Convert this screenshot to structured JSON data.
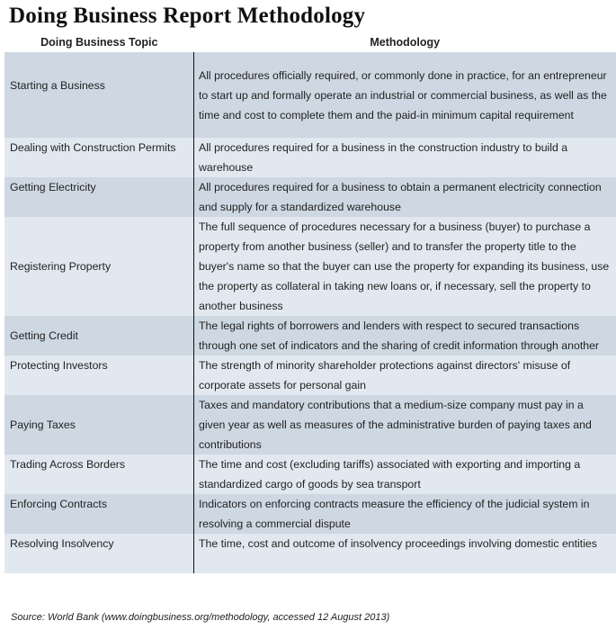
{
  "title": "Doing Business Report Methodology",
  "columns": [
    "Doing Business Topic",
    "Methodology"
  ],
  "rows": [
    {
      "topic": "Starting a Business",
      "methodology": "All procedures officially required, or commonly done in practice, for an entrepreneur to start up and formally operate an industrial or commercial business, as well as the time and cost to complete them and the paid-in minimum capital requirement"
    },
    {
      "topic": "Dealing with Construction Permits",
      "methodology": "All procedures required for a business in the construction industry to build a warehouse"
    },
    {
      "topic": "Getting Electricity",
      "methodology": "All procedures required for a business to obtain a permanent electricity connection and supply for a standardized warehouse"
    },
    {
      "topic": "Registering Property",
      "methodology": "The full sequence of procedures necessary for a business (buyer) to purchase a property from another business (seller) and to transfer the property title to the buyer's name so that the buyer can use the property for expanding its business, use the property as collateral in taking new loans or, if necessary, sell the property to another business"
    },
    {
      "topic": "Getting Credit",
      "methodology": "The legal rights of borrowers and lenders with respect to secured transactions through one set of indicators and the sharing of credit information through another"
    },
    {
      "topic": "Protecting Investors",
      "methodology": "The strength of minority shareholder protections against directors' misuse of corporate assets for personal gain"
    },
    {
      "topic": "Paying Taxes",
      "methodology": "Taxes and mandatory contributions that a medium-size company must pay in a given year as well as measures of the administrative burden of paying taxes and contributions"
    },
    {
      "topic": "Trading Across Borders",
      "methodology": "The time and cost (excluding tariffs) associated with exporting and importing a standardized cargo of goods by sea transport"
    },
    {
      "topic": "Enforcing Contracts",
      "methodology": "Indicators on enforcing contracts measure the efficiency of the judicial system in resolving a commercial dispute"
    },
    {
      "topic": "Resolving Insolvency",
      "methodology": "The time, cost and outcome of insolvency proceedings involving domestic entities"
    }
  ],
  "source": "Source: World Bank (www.doingbusiness.org/methodology, accessed 12 August 2013)",
  "colors": {
    "row_dark": "#cdd8e3",
    "row_light": "#e1e8ef"
  }
}
